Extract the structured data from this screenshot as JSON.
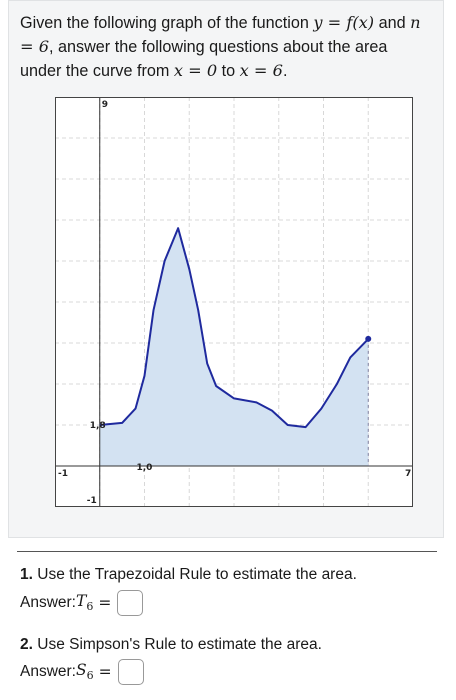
{
  "prompt": {
    "part1": "Given the following graph of the function ",
    "math_func": "y = f(x)",
    "part2": " and",
    "math_n": "n = 6",
    "part3": ", answer the following questions about the area under the curve from ",
    "math_x0": "x = 0",
    "part4": " to ",
    "math_x6": "x = 6",
    "part5": "."
  },
  "graph": {
    "labels": {
      "y_top": "9",
      "x_right": "7",
      "x_left": "-1",
      "y_bottom": "-1",
      "point_a": "1,8",
      "point_b": "1,0"
    },
    "x_range": [
      -1,
      7
    ],
    "y_range": [
      -1,
      9
    ],
    "grid": true,
    "curve_color": "#1f2a9e",
    "fill_color": "#d3e2f2",
    "grid_color": "#d8d8d8"
  },
  "questions": [
    {
      "number": "1.",
      "text": " Use the Trapezoidal Rule to estimate the area.",
      "answer_label": "Answer: ",
      "answer_symbol": "T",
      "answer_sub": "6",
      "answer_eq": "=",
      "answer_value": ""
    },
    {
      "number": "2.",
      "text": " Use Simpson's Rule to estimate the area.",
      "answer_label": "Answer: ",
      "answer_symbol": "S",
      "answer_sub": "6",
      "answer_eq": "=",
      "answer_value": ""
    }
  ]
}
